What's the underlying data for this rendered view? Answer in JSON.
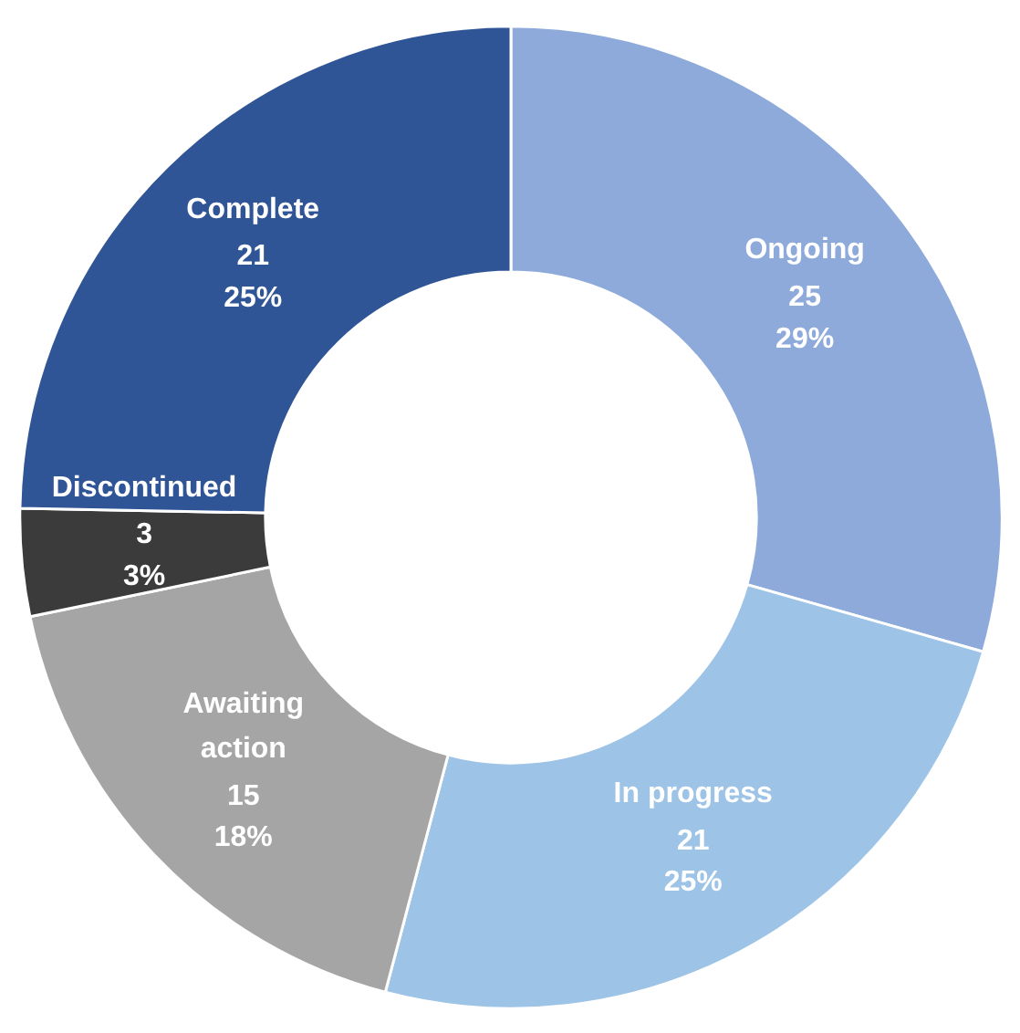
{
  "chart_data": {
    "type": "donut",
    "categories": [
      "Ongoing",
      "In progress",
      "Awaiting action",
      "Discontinued",
      "Complete"
    ],
    "values": [
      25,
      21,
      15,
      3,
      21
    ],
    "colors": [
      "#8eaadb",
      "#9dc3e6",
      "#a5a5a5",
      "#3b3b3b",
      "#2f5597"
    ],
    "value_labels": [
      "25\n29%",
      "21\n25%",
      "15\n18%",
      "3\n3%",
      "21\n25%"
    ],
    "legend": false
  }
}
